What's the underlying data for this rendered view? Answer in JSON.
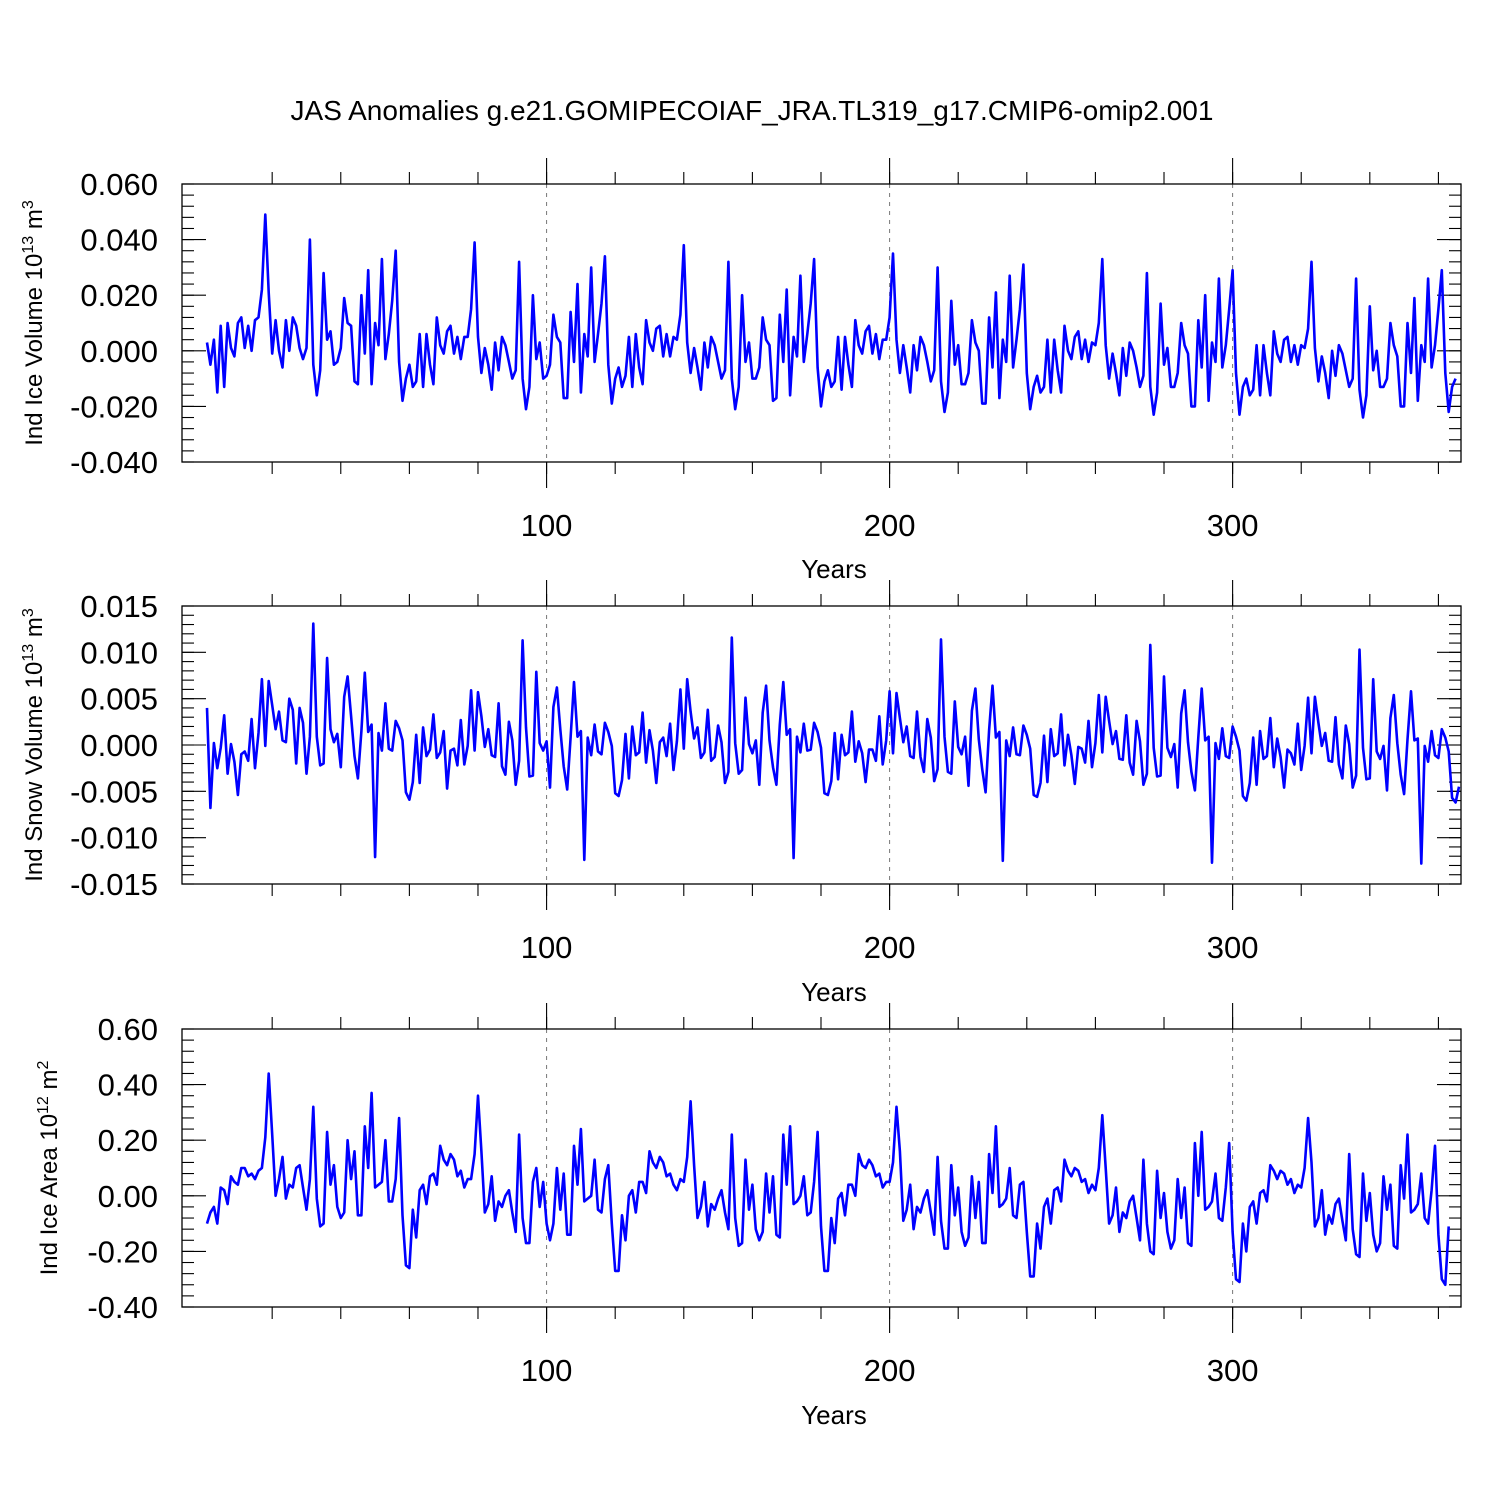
{
  "title": "JAS Anomalies g.e21.GOMIPECOIAF_JRA.TL319_g17.CMIP6-omip2.001",
  "colors": {
    "line": "#0000ff",
    "axes": "#000000",
    "grid": "#777777"
  },
  "chart_data": [
    {
      "type": "line",
      "name": "ice-volume",
      "ylabel": {
        "text": "Ind Ice Volume 10",
        "exp": "13",
        "unit": " m",
        "unit_exp": "3"
      },
      "xlabel": "Years",
      "xlim": [
        1,
        366
      ],
      "ylim": [
        -0.04,
        0.06
      ],
      "yticks": [
        "0.060",
        "0.040",
        "0.020",
        "0.000",
        "-0.020",
        "-0.040"
      ],
      "ytick_values": [
        0.06,
        0.04,
        0.02,
        0.0,
        -0.02,
        -0.04
      ],
      "yminor_step": 0.004,
      "xticks": [
        "100",
        "200",
        "300"
      ],
      "xtick_values": [
        100,
        200,
        300
      ],
      "xminor_step": 20,
      "grid_x": [
        100,
        200,
        300
      ],
      "series_x_start": 1,
      "values": [
        0.003,
        -0.005,
        0.004,
        -0.015,
        0.009,
        -0.013,
        0.01,
        0.001,
        -0.002,
        0.01,
        0.012,
        0.001,
        0.009,
        0.0,
        0.011,
        0.012,
        0.022,
        0.049,
        0.021,
        -0.001,
        0.011,
        0.0,
        -0.006,
        0.011,
        0.0,
        0.012,
        0.009,
        0.001,
        -0.003,
        0.001,
        0.04,
        -0.005,
        -0.016,
        -0.007,
        0.028,
        0.004,
        0.007,
        -0.005,
        -0.004,
        0.001,
        0.019,
        0.01,
        0.009,
        -0.011,
        -0.012,
        0.02,
        -0.001,
        0.029,
        -0.012,
        0.01,
        0.002,
        0.033,
        -0.003,
        0.006,
        0.018,
        0.036,
        -0.004,
        -0.018,
        -0.01,
        -0.005,
        -0.013,
        -0.011,
        0.006,
        -0.013,
        0.006,
        -0.005,
        -0.012,
        0.012,
        0.002,
        -0.001,
        0.007,
        0.009,
        -0.001,
        0.005,
        -0.003,
        0.005,
        0.005,
        0.015,
        0.039,
        0.005,
        -0.008,
        0.001,
        -0.005,
        -0.014,
        0.003,
        -0.007,
        0.005,
        0.002,
        -0.004,
        -0.01,
        -0.007,
        0.032,
        -0.01,
        -0.021,
        -0.013,
        0.02,
        -0.003,
        0.003,
        -0.01,
        -0.009,
        -0.005,
        0.013,
        0.005,
        0.003,
        -0.017,
        -0.017,
        0.014,
        -0.004,
        0.024,
        -0.015,
        0.006,
        -0.002,
        0.03,
        -0.004,
        0.006,
        0.017,
        0.034,
        -0.005,
        -0.019,
        -0.01,
        -0.006,
        -0.013,
        -0.009,
        0.005,
        -0.013,
        0.006,
        -0.006,
        -0.012,
        0.011,
        0.003,
        0.0,
        0.008,
        0.009,
        -0.002,
        0.006,
        -0.002,
        0.005,
        0.004,
        0.013,
        0.038,
        0.003,
        -0.008,
        0.001,
        -0.006,
        -0.014,
        0.003,
        -0.006,
        0.005,
        0.002,
        -0.004,
        -0.01,
        -0.007,
        0.032,
        -0.01,
        -0.021,
        -0.013,
        0.02,
        -0.004,
        0.003,
        -0.01,
        -0.01,
        -0.006,
        0.012,
        0.004,
        0.002,
        -0.018,
        -0.017,
        0.013,
        -0.004,
        0.022,
        -0.016,
        0.005,
        -0.002,
        0.027,
        -0.004,
        0.006,
        0.017,
        0.033,
        -0.006,
        -0.02,
        -0.011,
        -0.007,
        -0.013,
        -0.011,
        0.005,
        -0.014,
        0.005,
        -0.005,
        -0.013,
        0.011,
        0.002,
        -0.001,
        0.007,
        0.009,
        -0.001,
        0.006,
        -0.003,
        0.004,
        0.004,
        0.012,
        0.035,
        0.004,
        -0.008,
        0.002,
        -0.006,
        -0.015,
        0.002,
        -0.007,
        0.005,
        0.002,
        -0.004,
        -0.011,
        -0.007,
        0.03,
        -0.011,
        -0.022,
        -0.015,
        0.018,
        -0.005,
        0.002,
        -0.012,
        -0.012,
        -0.008,
        0.011,
        0.003,
        0.0,
        -0.019,
        -0.019,
        0.012,
        -0.006,
        0.021,
        -0.017,
        0.004,
        -0.004,
        0.027,
        -0.006,
        0.004,
        0.015,
        0.031,
        -0.008,
        -0.021,
        -0.013,
        -0.009,
        -0.015,
        -0.013,
        0.004,
        -0.015,
        0.004,
        -0.007,
        -0.015,
        0.009,
        0.0,
        -0.003,
        0.005,
        0.007,
        -0.003,
        0.004,
        -0.004,
        0.003,
        0.002,
        0.01,
        0.033,
        0.002,
        -0.01,
        -0.001,
        -0.008,
        -0.016,
        0.001,
        -0.009,
        0.003,
        0.0,
        -0.006,
        -0.013,
        -0.009,
        0.028,
        -0.013,
        -0.023,
        -0.015,
        0.017,
        -0.005,
        0.001,
        -0.013,
        -0.013,
        -0.008,
        0.01,
        0.002,
        -0.001,
        -0.02,
        -0.02,
        0.011,
        -0.006,
        0.02,
        -0.018,
        0.003,
        -0.004,
        0.026,
        -0.006,
        0.002,
        0.015,
        0.029,
        -0.008,
        -0.023,
        -0.013,
        -0.01,
        -0.016,
        -0.014,
        0.002,
        -0.016,
        0.002,
        -0.008,
        -0.016,
        0.007,
        -0.001,
        -0.004,
        0.004,
        0.005,
        -0.004,
        0.002,
        -0.005,
        0.002,
        0.001,
        0.008,
        0.032,
        0.001,
        -0.011,
        -0.002,
        -0.008,
        -0.017,
        0.0,
        -0.009,
        0.002,
        -0.001,
        -0.007,
        -0.013,
        -0.01,
        0.026,
        -0.014,
        -0.024,
        -0.016,
        0.016,
        -0.007,
        0.0,
        -0.013,
        -0.013,
        -0.01,
        0.01,
        0.002,
        -0.002,
        -0.02,
        -0.02,
        0.01,
        -0.008,
        0.019,
        -0.018,
        0.002,
        -0.004,
        0.026,
        -0.006,
        0.002,
        0.015,
        0.029,
        -0.008,
        -0.022,
        -0.013,
        -0.01
      ]
    },
    {
      "type": "line",
      "name": "snow-volume",
      "ylabel": {
        "text": "Ind Snow Volume 10",
        "exp": "13",
        "unit": " m",
        "unit_exp": "3"
      },
      "xlabel": "Years",
      "xlim": [
        1,
        366
      ],
      "ylim": [
        -0.015,
        0.015
      ],
      "yticks": [
        "0.015",
        "0.010",
        "0.005",
        "0.000",
        "-0.005",
        "-0.010",
        "-0.015"
      ],
      "ytick_values": [
        0.015,
        0.01,
        0.005,
        0.0,
        -0.005,
        -0.01,
        -0.015
      ],
      "yminor_step": 0.001,
      "xticks": [
        "100",
        "200",
        "300"
      ],
      "xtick_values": [
        100,
        200,
        300
      ],
      "xminor_step": 20,
      "grid_x": [
        100,
        200,
        300
      ],
      "series_x_start": 1,
      "values": [
        0.004,
        -0.0068,
        0.0002,
        -0.0025,
        -0.0003,
        0.0032,
        -0.0031,
        0.0001,
        -0.0018,
        -0.0054,
        -0.001,
        -0.0007,
        -0.0017,
        0.0028,
        -0.0025,
        0.0013,
        0.0071,
        -0.0001,
        0.0069,
        0.0043,
        0.0017,
        0.0036,
        0.0005,
        0.0003,
        0.005,
        0.0038,
        -0.002,
        0.004,
        0.0024,
        -0.0031,
        0.0009,
        0.0131,
        0.0009,
        -0.0022,
        -0.002,
        0.0094,
        0.0017,
        0.0003,
        0.0012,
        -0.0024,
        0.0052,
        0.0074,
        0.0031,
        -0.0012,
        -0.0036,
        0.0015,
        0.0078,
        0.0014,
        0.0022,
        -0.0121,
        0.0013,
        -0.0006,
        0.0045,
        -0.0004,
        -0.0006,
        0.0026,
        0.0018,
        0.0005,
        -0.0051,
        -0.0059,
        -0.004,
        0.0011,
        -0.0041,
        0.0019,
        -0.0012,
        -0.0005,
        0.0033,
        -0.0014,
        -0.0008,
        0.0015,
        -0.0047,
        -0.0006,
        -0.0004,
        -0.0022,
        0.0027,
        -0.0021,
        -0.0001,
        0.0059,
        -0.0006,
        0.0057,
        0.0031,
        -0.0002,
        0.0017,
        -0.0011,
        -0.0013,
        0.0045,
        -0.0023,
        -0.0032,
        0.0025,
        0.0005,
        -0.0043,
        -0.0017,
        0.0113,
        0.0019,
        -0.0034,
        -0.0033,
        0.0079,
        0.0002,
        -0.0006,
        0.0004,
        -0.0046,
        0.0041,
        0.0062,
        0.0017,
        -0.0023,
        -0.0048,
        0.0008,
        0.0068,
        0.0009,
        0.0015,
        -0.0124,
        0.0008,
        -0.0011,
        0.0022,
        -0.0007,
        -0.001,
        0.0024,
        0.0014,
        -0.0001,
        -0.0052,
        -0.0055,
        -0.0038,
        0.0012,
        -0.0036,
        0.002,
        -0.0011,
        -0.0008,
        0.0035,
        -0.0019,
        0.0016,
        -0.0006,
        -0.0041,
        0.0003,
        0.0008,
        -0.0012,
        0.0023,
        -0.0027,
        0.0004,
        0.006,
        -0.0004,
        0.0071,
        0.0036,
        0.0007,
        0.0019,
        -0.0014,
        -0.0008,
        0.0038,
        -0.0017,
        -0.0013,
        0.0021,
        0.0003,
        -0.0041,
        -0.0029,
        0.0116,
        0.0002,
        -0.0031,
        -0.0027,
        0.0051,
        0.0001,
        -0.0009,
        0.0005,
        -0.0043,
        0.0035,
        0.0064,
        0.0005,
        -0.0024,
        -0.0043,
        0.0022,
        0.0068,
        0.0011,
        0.0017,
        -0.0122,
        0.0009,
        -0.0008,
        0.0023,
        -0.0006,
        -0.0005,
        0.0024,
        0.0014,
        -0.0003,
        -0.0052,
        -0.0054,
        -0.0039,
        0.0013,
        -0.0037,
        0.0011,
        -0.0011,
        -0.0008,
        0.0036,
        -0.0018,
        0.0004,
        -0.0009,
        -0.004,
        -0.0005,
        -0.0005,
        -0.0017,
        0.0031,
        -0.0021,
        0.0005,
        0.0058,
        -0.0009,
        0.0056,
        0.0029,
        0.0003,
        0.002,
        -0.0012,
        -0.0014,
        0.0036,
        -0.0013,
        -0.0029,
        0.0028,
        0.0008,
        -0.0039,
        -0.0026,
        0.0114,
        0.0009,
        -0.0029,
        -0.0031,
        0.0047,
        -0.0002,
        -0.001,
        0.0009,
        -0.0044,
        0.0037,
        0.0061,
        0.0006,
        -0.0026,
        -0.0051,
        0.0016,
        0.0064,
        0.0008,
        0.0014,
        -0.0125,
        0.0005,
        -0.0012,
        0.0019,
        -0.001,
        -0.0011,
        0.0021,
        0.0011,
        -0.0004,
        -0.0054,
        -0.0056,
        -0.0041,
        0.001,
        -0.004,
        0.0017,
        -0.0012,
        -0.0009,
        0.0033,
        -0.0022,
        0.0011,
        -0.0011,
        -0.0042,
        -0.0002,
        -0.0004,
        -0.0019,
        0.0026,
        -0.0024,
        0.0002,
        0.0054,
        -0.0008,
        0.0052,
        0.0026,
        0.0001,
        0.0015,
        -0.0015,
        -0.0016,
        0.0032,
        -0.0019,
        -0.0032,
        0.0026,
        0.0004,
        -0.0043,
        -0.0031,
        0.0108,
        -0.0003,
        -0.0034,
        -0.0033,
        0.0074,
        -0.0003,
        -0.0013,
        0.0001,
        -0.0046,
        0.0034,
        0.0059,
        0.0003,
        -0.0029,
        -0.0049,
        0.0008,
        0.0061,
        0.0005,
        0.0009,
        -0.0127,
        0.0002,
        -0.0015,
        0.0018,
        -0.0012,
        -0.0014,
        0.002,
        0.0009,
        -0.0006,
        -0.0055,
        -0.006,
        -0.0041,
        0.0008,
        -0.0043,
        0.0015,
        -0.0015,
        -0.0012,
        0.0029,
        -0.0024,
        0.0007,
        -0.0013,
        -0.0046,
        -0.0005,
        -0.0009,
        -0.0021,
        0.0023,
        -0.0027,
        -0.0001,
        0.0051,
        -0.0009,
        0.0052,
        0.0024,
        -0.0001,
        0.0013,
        -0.0017,
        -0.0018,
        0.003,
        -0.0021,
        -0.0036,
        0.0021,
        0.0001,
        -0.0046,
        -0.0033,
        0.0103,
        -0.0003,
        -0.0037,
        -0.0036,
        0.0071,
        -0.0007,
        -0.0015,
        -0.0001,
        -0.0049,
        0.0029,
        0.0054,
        0.0002,
        -0.0032,
        -0.0053,
        0.0006,
        0.0058,
        0.0005,
        0.0007,
        -0.0128,
        -0.0001,
        -0.0018,
        0.0015,
        -0.0011,
        -0.0014,
        0.0017,
        0.0008,
        -0.0007,
        -0.0057,
        -0.0062,
        -0.0045
      ]
    },
    {
      "type": "line",
      "name": "ice-area",
      "ylabel": {
        "text": "Ind Ice Area 10",
        "exp": "12",
        "unit": " m",
        "unit_exp": "2"
      },
      "xlabel": "Years",
      "xlim": [
        1,
        366
      ],
      "ylim": [
        -0.4,
        0.6
      ],
      "yticks": [
        "0.60",
        "0.40",
        "0.20",
        "0.00",
        "-0.20",
        "-0.40"
      ],
      "ytick_values": [
        0.6,
        0.4,
        0.2,
        0.0,
        -0.2,
        -0.4
      ],
      "yminor_step": 0.04,
      "xticks": [
        "100",
        "200",
        "300"
      ],
      "xtick_values": [
        100,
        200,
        300
      ],
      "xminor_step": 20,
      "grid_x": [
        100,
        200,
        300
      ],
      "series_x_start": 1,
      "values": [
        -0.1,
        -0.06,
        -0.04,
        -0.1,
        0.03,
        0.02,
        -0.03,
        0.07,
        0.05,
        0.04,
        0.1,
        0.1,
        0.07,
        0.08,
        0.06,
        0.09,
        0.1,
        0.21,
        0.44,
        0.22,
        0.0,
        0.06,
        0.14,
        -0.01,
        0.04,
        0.03,
        0.1,
        0.11,
        0.03,
        -0.05,
        0.06,
        0.32,
        -0.01,
        -0.11,
        -0.1,
        0.23,
        0.04,
        0.11,
        -0.04,
        -0.08,
        -0.06,
        0.2,
        0.06,
        0.16,
        -0.07,
        -0.07,
        0.25,
        0.1,
        0.37,
        0.03,
        0.04,
        0.05,
        0.2,
        -0.02,
        -0.02,
        0.06,
        0.28,
        -0.07,
        -0.25,
        -0.26,
        -0.05,
        -0.15,
        0.02,
        0.04,
        -0.03,
        0.07,
        0.08,
        0.04,
        0.18,
        0.13,
        0.11,
        0.15,
        0.13,
        0.07,
        0.09,
        0.03,
        0.06,
        0.06,
        0.15,
        0.36,
        0.16,
        -0.06,
        -0.03,
        0.07,
        -0.09,
        -0.02,
        -0.04,
        0.0,
        0.02,
        -0.06,
        -0.13,
        0.22,
        -0.08,
        -0.17,
        -0.17,
        0.05,
        0.1,
        -0.04,
        0.05,
        -0.1,
        -0.16,
        -0.1,
        0.1,
        -0.05,
        0.08,
        -0.14,
        -0.14,
        0.18,
        0.04,
        0.24,
        -0.02,
        -0.01,
        0.0,
        0.13,
        -0.05,
        -0.06,
        0.06,
        0.11,
        -0.1,
        -0.27,
        -0.27,
        -0.07,
        -0.16,
        0.0,
        0.02,
        -0.06,
        0.05,
        0.05,
        0.01,
        0.16,
        0.12,
        0.1,
        0.14,
        0.12,
        0.07,
        0.08,
        0.04,
        0.02,
        0.06,
        0.05,
        0.14,
        0.34,
        0.11,
        -0.08,
        -0.04,
        0.05,
        -0.11,
        -0.03,
        -0.05,
        -0.01,
        0.02,
        -0.06,
        -0.12,
        0.22,
        -0.08,
        -0.18,
        -0.17,
        0.13,
        -0.05,
        0.04,
        -0.12,
        -0.16,
        -0.13,
        0.08,
        -0.06,
        0.07,
        -0.14,
        -0.15,
        0.22,
        0.04,
        0.25,
        -0.03,
        -0.02,
        0.0,
        0.07,
        -0.07,
        -0.06,
        0.05,
        0.23,
        -0.11,
        -0.27,
        -0.27,
        -0.08,
        -0.17,
        -0.01,
        0.01,
        -0.07,
        0.04,
        0.04,
        0.0,
        0.15,
        0.11,
        0.1,
        0.13,
        0.11,
        0.07,
        0.08,
        0.03,
        0.05,
        0.05,
        0.12,
        0.32,
        0.16,
        -0.09,
        -0.05,
        0.04,
        -0.12,
        -0.04,
        -0.06,
        -0.01,
        0.02,
        -0.06,
        -0.14,
        0.14,
        -0.09,
        -0.19,
        -0.19,
        0.11,
        -0.07,
        0.03,
        -0.13,
        -0.18,
        -0.15,
        0.07,
        -0.08,
        0.05,
        -0.17,
        -0.17,
        0.15,
        0.01,
        0.25,
        -0.04,
        -0.03,
        -0.01,
        0.1,
        -0.07,
        -0.08,
        0.04,
        0.05,
        -0.13,
        -0.29,
        -0.29,
        -0.1,
        -0.19,
        -0.04,
        -0.01,
        -0.1,
        0.02,
        0.03,
        -0.02,
        0.13,
        0.09,
        0.07,
        0.1,
        0.09,
        0.05,
        0.06,
        0.01,
        0.04,
        0.02,
        0.1,
        0.29,
        0.1,
        -0.1,
        -0.07,
        0.03,
        -0.13,
        -0.06,
        -0.08,
        -0.02,
        0.0,
        -0.08,
        -0.16,
        0.13,
        -0.1,
        -0.2,
        -0.21,
        0.09,
        -0.08,
        0.01,
        -0.13,
        -0.19,
        -0.16,
        0.06,
        -0.08,
        0.03,
        -0.17,
        -0.18,
        0.19,
        0.0,
        0.23,
        -0.05,
        -0.04,
        -0.02,
        0.08,
        -0.08,
        -0.09,
        0.03,
        0.19,
        -0.13,
        -0.3,
        -0.31,
        -0.1,
        -0.2,
        -0.04,
        -0.02,
        -0.1,
        0.01,
        0.02,
        -0.02,
        0.11,
        0.09,
        0.06,
        0.09,
        0.08,
        0.04,
        0.06,
        0.01,
        0.04,
        0.03,
        0.1,
        0.28,
        0.12,
        -0.11,
        -0.08,
        0.02,
        -0.14,
        -0.07,
        -0.1,
        -0.03,
        -0.01,
        -0.09,
        -0.16,
        0.15,
        -0.12,
        -0.21,
        -0.22,
        0.08,
        -0.09,
        0.01,
        -0.14,
        -0.2,
        -0.17,
        0.07,
        -0.05,
        0.04,
        -0.18,
        -0.19,
        0.11,
        -0.01,
        0.22,
        -0.06,
        -0.05,
        -0.03,
        0.08,
        -0.08,
        -0.1,
        0.02,
        0.18,
        -0.14,
        -0.3,
        -0.32,
        -0.11
      ]
    }
  ]
}
